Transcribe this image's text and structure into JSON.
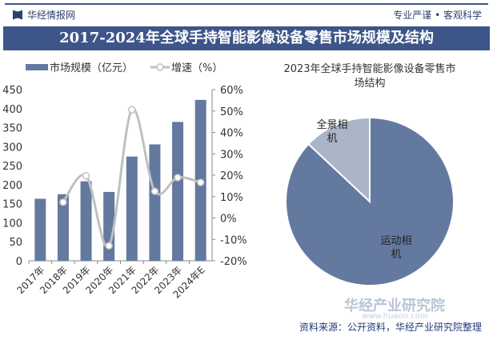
{
  "header": {
    "brand": "华经情报网",
    "slogan": "专业严谨 • 客观科学",
    "title": "2017-2024年全球手持智能影像设备零售市场规模及结构"
  },
  "footer": {
    "source": "资料来源：公开资料，华经产业研究院整理",
    "watermark": "华经产业研究院",
    "watermark_url": "www.huaon.com"
  },
  "colors": {
    "bar": "#64799f",
    "line": "#c0c0c0",
    "pie_main": "#64799f",
    "pie_small": "#aab5c8",
    "title_bg": "#3d5588"
  },
  "chart_data": [
    {
      "type": "bar+line",
      "categories": [
        "2017年",
        "2018年",
        "2019年",
        "2020年",
        "2021年",
        "2022年",
        "2023年",
        "2024年E"
      ],
      "series": [
        {
          "name": "市场规模（亿元）",
          "type": "bar",
          "axis": "left",
          "values": [
            163,
            175,
            209,
            181,
            274,
            306,
            365,
            423
          ]
        },
        {
          "name": "增速（%）",
          "type": "line",
          "axis": "right",
          "values": [
            null,
            7.4,
            19.7,
            -13.0,
            50.6,
            12.5,
            18.9,
            16.6
          ]
        }
      ],
      "ylim": [
        0,
        450
      ],
      "yticks": [
        0,
        50,
        100,
        150,
        200,
        250,
        300,
        350,
        400,
        450
      ],
      "y2lim": [
        -20,
        60
      ],
      "y2ticks": [
        "-20%",
        "-10%",
        "0%",
        "10%",
        "20%",
        "30%",
        "40%",
        "50%",
        "60%"
      ],
      "legend": "top",
      "grid": false
    },
    {
      "type": "pie",
      "title": "2023年全球手持智能影像设备零售市场结构",
      "title_lines": [
        "2023年全球手持智能影像设备零售市",
        "场结构"
      ],
      "slices": [
        {
          "label": "运动相机",
          "label_lines": [
            "运动相",
            "机"
          ],
          "value": 87
        },
        {
          "label": "全景相机",
          "label_lines": [
            "全景相",
            "机"
          ],
          "value": 13
        }
      ]
    }
  ]
}
